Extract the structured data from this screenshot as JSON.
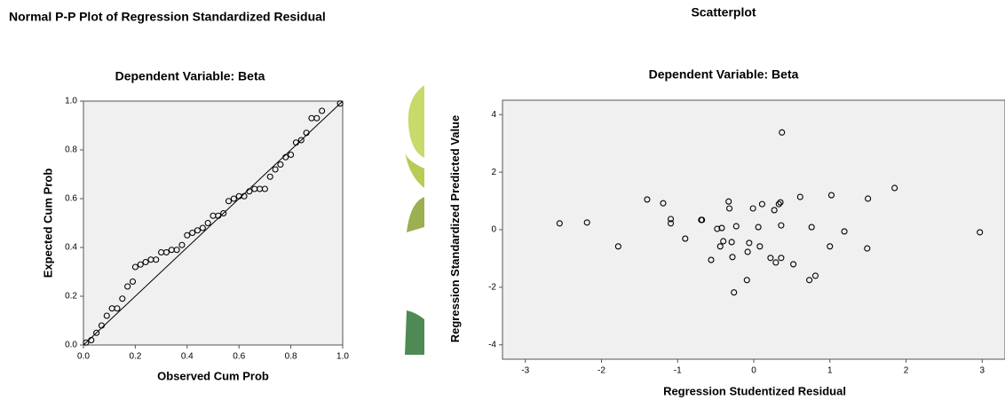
{
  "chart_data": [
    {
      "type": "scatter",
      "title": "Normal P-P Plot of Regression Standardized Residual",
      "subtitle": "Dependent Variable: Beta",
      "x_label": "Observed Cum Prob",
      "y_label": "Expected Cum Prob",
      "x": [
        0.01,
        0.03,
        0.05,
        0.07,
        0.09,
        0.11,
        0.13,
        0.15,
        0.17,
        0.19,
        0.2,
        0.22,
        0.24,
        0.26,
        0.28,
        0.3,
        0.32,
        0.34,
        0.36,
        0.38,
        0.4,
        0.42,
        0.44,
        0.46,
        0.48,
        0.5,
        0.52,
        0.54,
        0.56,
        0.58,
        0.6,
        0.62,
        0.64,
        0.66,
        0.68,
        0.7,
        0.72,
        0.74,
        0.76,
        0.78,
        0.8,
        0.82,
        0.84,
        0.86,
        0.88,
        0.9,
        0.92,
        0.99
      ],
      "values": [
        0.01,
        0.02,
        0.05,
        0.08,
        0.12,
        0.15,
        0.15,
        0.19,
        0.24,
        0.26,
        0.32,
        0.33,
        0.34,
        0.35,
        0.35,
        0.38,
        0.38,
        0.39,
        0.39,
        0.41,
        0.45,
        0.46,
        0.47,
        0.48,
        0.5,
        0.53,
        0.53,
        0.54,
        0.59,
        0.6,
        0.61,
        0.61,
        0.63,
        0.64,
        0.64,
        0.64,
        0.69,
        0.72,
        0.74,
        0.77,
        0.78,
        0.83,
        0.84,
        0.87,
        0.93,
        0.93,
        0.96,
        0.99
      ],
      "xlim": [
        0,
        1
      ],
      "ylim": [
        0,
        1
      ],
      "xticks": [
        {
          "value": 0,
          "label": "0.0"
        },
        0.2,
        0.4,
        0.6,
        0.8,
        {
          "value": 1,
          "label": "1.0"
        }
      ],
      "yticks": [
        {
          "value": 0,
          "label": "0.0"
        },
        0.2,
        0.4,
        0.6,
        0.8,
        {
          "value": 1,
          "label": "1.0"
        }
      ],
      "reference_line": true
    },
    {
      "type": "scatter",
      "title": "Scatterplot",
      "subtitle": "Dependent Variable: Beta",
      "x_label": "Regression Studentized Residual",
      "y_label": "Regression Standardized Predicted Value",
      "x": [
        -2.55,
        -2.19,
        -1.78,
        -1.4,
        -1.19,
        -1.09,
        -1.09,
        -0.9,
        -0.69,
        -0.68,
        -0.56,
        -0.48,
        -0.44,
        -0.42,
        -0.4,
        -0.33,
        -0.32,
        -0.29,
        -0.28,
        -0.26,
        -0.23,
        -0.09,
        -0.08,
        -0.06,
        -0.01,
        0.06,
        0.08,
        0.11,
        0.22,
        0.27,
        0.29,
        0.33,
        0.35,
        0.36,
        0.37,
        0.36,
        0.52,
        0.61,
        0.73,
        0.76,
        0.81,
        1.0,
        1.02,
        1.19,
        1.5,
        1.49,
        1.85,
        2.97
      ],
      "values": [
        0.22,
        0.25,
        -0.58,
        1.05,
        0.92,
        0.37,
        0.22,
        -0.31,
        0.34,
        0.34,
        -1.05,
        0.03,
        -0.58,
        0.06,
        -0.4,
        0.98,
        0.74,
        -0.43,
        -0.95,
        -2.18,
        0.12,
        -1.75,
        -0.77,
        -0.46,
        0.74,
        0.09,
        -0.58,
        0.89,
        -0.98,
        0.68,
        -1.14,
        0.89,
        0.95,
        0.15,
        3.38,
        -0.98,
        -1.2,
        1.14,
        -1.75,
        0.09,
        -1.6,
        -0.58,
        1.2,
        -0.06,
        1.08,
        -0.65,
        1.45,
        -0.09
      ],
      "xlim": [
        -3.3,
        3.3
      ],
      "ylim": [
        -4.5,
        4.5
      ],
      "xticks": [
        -3,
        -2,
        -1,
        0,
        1,
        2,
        3
      ],
      "yticks": [
        -4,
        -2,
        0,
        2,
        4
      ],
      "reference_line": false
    }
  ]
}
